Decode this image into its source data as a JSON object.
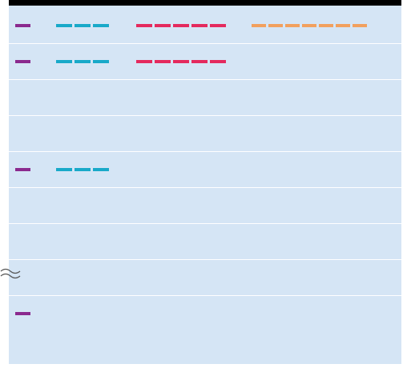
{
  "colors": {
    "background": "#d5e5f5",
    "top_bar": "#000000",
    "row_divider": "#ffffff",
    "groups": [
      "#8b2a8e",
      "#19a9c9",
      "#e42a5e",
      "#f2a05e"
    ]
  },
  "group_dash_counts": [
    1,
    3,
    5,
    7
  ],
  "rows": [
    {
      "groups": [
        1,
        2,
        3,
        4
      ]
    },
    {
      "groups": [
        1,
        2,
        3
      ]
    },
    {
      "groups": []
    },
    {
      "groups": []
    },
    {
      "groups": [
        1,
        2
      ]
    },
    {
      "groups": []
    },
    {
      "groups": [],
      "break_marker": true
    },
    {
      "groups": []
    },
    {
      "groups": [
        1
      ]
    }
  ],
  "icons": {
    "break_marker": "approx-equal-break-icon"
  }
}
